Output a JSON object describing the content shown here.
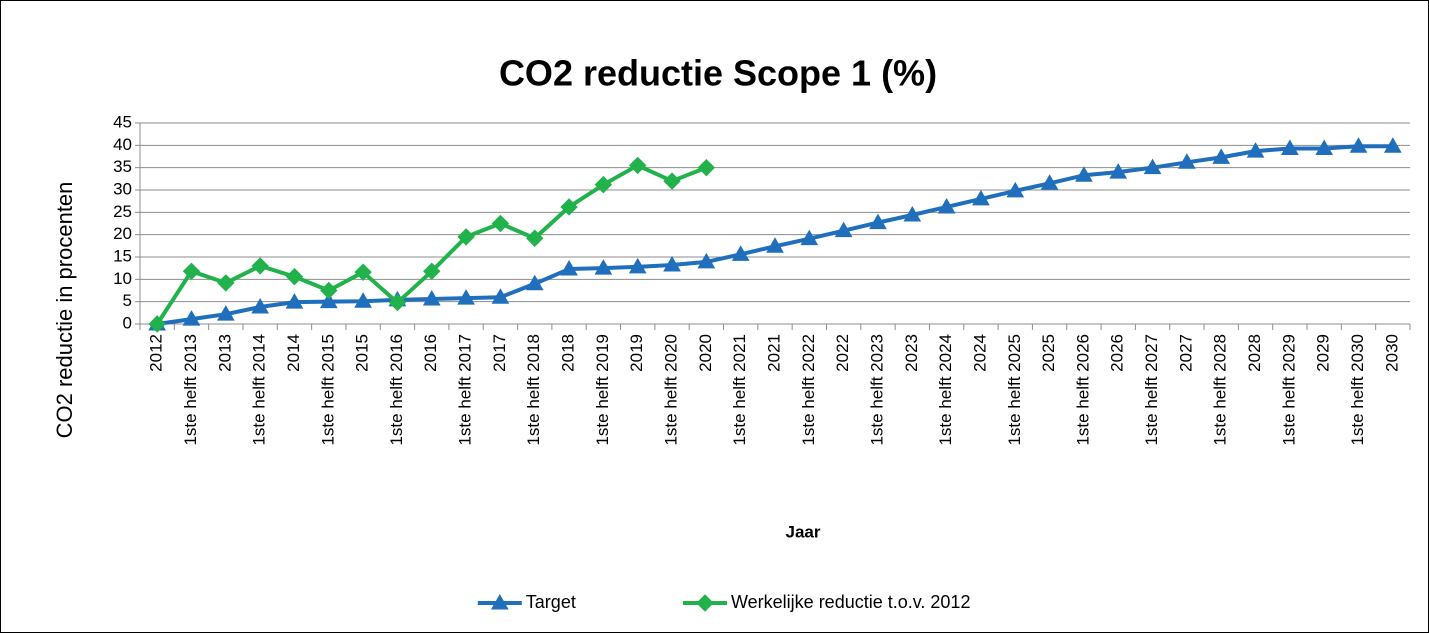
{
  "chart_data": {
    "type": "line",
    "title": "CO2 reductie Scope 1 (%)",
    "x_label": "Jaar",
    "y_label": "CO2 reductie in procenten",
    "categories": [
      "2012",
      "1ste helft 2013",
      "2013",
      "1ste helft 2014",
      "2014",
      "1ste helft 2015",
      "2015",
      "1ste helft 2016",
      "2016",
      "1ste helft 2017",
      "2017",
      "1ste helft 2018",
      "2018",
      "1ste helft 2019",
      "2019",
      "1ste helft 2020",
      "2020",
      "1ste helft 2021",
      "2021",
      "1ste helft 2022",
      "2022",
      "1ste helft 2023",
      "2023",
      "1ste helft 2024",
      "2024",
      "1ste helft 2025",
      "2025",
      "1ste helft 2026",
      "2026",
      "1ste helft 2027",
      "2027",
      "1ste helft 2028",
      "2028",
      "1ste helft 2029",
      "2029",
      "1ste helft 2030",
      "2030"
    ],
    "series": [
      {
        "name": "Target",
        "color": "#1f6fbd",
        "marker": "triangle",
        "values": [
          0,
          1.1,
          2.2,
          3.8,
          4.9,
          5.0,
          5.1,
          5.4,
          5.6,
          5.8,
          6.0,
          9.0,
          12.3,
          12.5,
          12.8,
          13.2,
          13.9,
          15.6,
          17.4,
          19.1,
          20.9,
          22.7,
          24.4,
          26.2,
          28.0,
          29.8,
          31.5,
          33.3,
          34.0,
          35.0,
          36.2,
          37.3,
          38.7,
          39.3,
          39.3,
          39.8,
          39.8
        ]
      },
      {
        "name": "Werkelijke reductie t.o.v. 2012",
        "color": "#22b24c",
        "marker": "diamond",
        "values": [
          0,
          11.8,
          9.2,
          13.0,
          10.6,
          7.5,
          11.6,
          4.8,
          11.8,
          19.5,
          22.5,
          19.2,
          26.2,
          31.2,
          35.5,
          32.0,
          35.0,
          null,
          null,
          null,
          null,
          null,
          null,
          null,
          null,
          null,
          null,
          null,
          null,
          null,
          null,
          null,
          null,
          null,
          null,
          null,
          null
        ]
      }
    ],
    "ylim": [
      0,
      45
    ],
    "yticks": [
      0,
      5,
      10,
      15,
      20,
      25,
      30,
      35,
      40,
      45
    ],
    "grid": true,
    "legend": "bottom"
  }
}
